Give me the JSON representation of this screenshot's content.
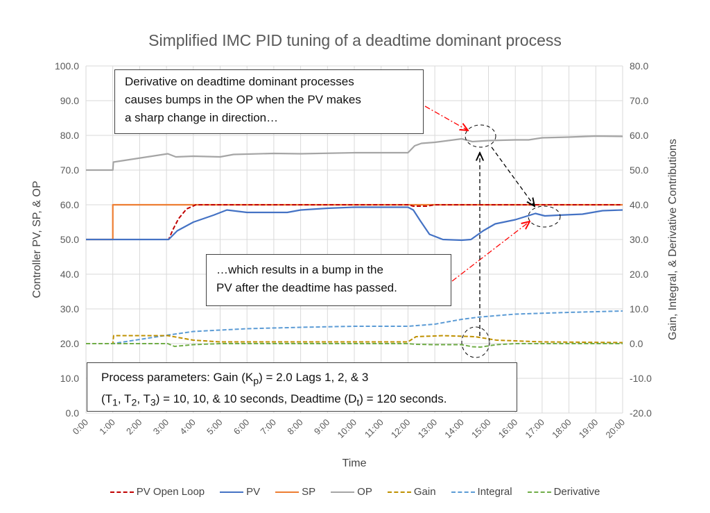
{
  "chart_data": {
    "type": "line",
    "title": "Simplified IMC PID tuning of a deadtime dominant process",
    "xlabel": "Time",
    "ylabel": "Controller PV, SP, & OP",
    "y2label": "Gain, Integral, & Derivative Contributions",
    "x_ticks": [
      "0:00",
      "1:00",
      "2:00",
      "3:00",
      "4:00",
      "5:00",
      "6:00",
      "7:00",
      "8:00",
      "9:00",
      "10:00",
      "11:00",
      "12:00",
      "13:00",
      "14:00",
      "15:00",
      "16:00",
      "17:00",
      "18:00",
      "19:00",
      "20:00"
    ],
    "xlim_minutes": [
      0,
      20
    ],
    "ylim": [
      0,
      100
    ],
    "y_ticks": [
      "0.0",
      "10.0",
      "20.0",
      "30.0",
      "40.0",
      "50.0",
      "60.0",
      "70.0",
      "80.0",
      "90.0",
      "100.0"
    ],
    "y2lim": [
      -20,
      80
    ],
    "y2_ticks": [
      "-20.0",
      "-10.0",
      "0.0",
      "10.0",
      "20.0",
      "30.0",
      "40.0",
      "50.0",
      "60.0",
      "70.0",
      "80.0"
    ],
    "grid": true,
    "legend_position": "bottom",
    "series": [
      {
        "name": "PV Open Loop",
        "axis": "left",
        "color": "#c00000",
        "dash": "dashed",
        "x": [
          0,
          3.08,
          3.25,
          3.45,
          3.75,
          4.1,
          12,
          12.2,
          12.7,
          13,
          20
        ],
        "y": [
          50,
          50,
          53,
          56,
          58.8,
          60,
          60,
          59.6,
          59.6,
          60,
          60
        ]
      },
      {
        "name": "PV",
        "axis": "left",
        "color": "#4472c4",
        "dash": "solid",
        "x": [
          0,
          3.08,
          3.4,
          4,
          4.75,
          5.25,
          6,
          7.5,
          8,
          9,
          10,
          12,
          12.2,
          12.45,
          12.8,
          13.3,
          14,
          14.35,
          14.8,
          15.25,
          16,
          16.75,
          17.1,
          17.6,
          18.5,
          19.25,
          20
        ],
        "y": [
          50,
          50,
          52.5,
          55,
          57,
          58.5,
          57.8,
          57.8,
          58.5,
          59,
          59.3,
          59.3,
          58.5,
          55.5,
          51.5,
          50,
          49.8,
          50,
          52.5,
          54.5,
          55.7,
          57.5,
          56.8,
          57,
          57.3,
          58.3,
          58.5
        ]
      },
      {
        "name": "SP",
        "axis": "left",
        "color": "#ed7d31",
        "dash": "solid",
        "x": [
          0,
          1,
          1,
          20
        ],
        "y": [
          50,
          50,
          60,
          60
        ]
      },
      {
        "name": "OP",
        "axis": "left",
        "color": "#a5a5a5",
        "dash": "solid",
        "x": [
          0,
          1,
          1.02,
          3.05,
          3.35,
          4,
          5,
          5.5,
          7,
          8,
          10,
          12,
          12.25,
          12.5,
          13,
          14,
          14.4,
          15,
          16,
          16.5,
          17,
          18,
          19,
          20
        ],
        "y": [
          70,
          70,
          72.3,
          74.7,
          73.8,
          74,
          73.8,
          74.5,
          74.8,
          74.7,
          75,
          75,
          77,
          77.7,
          78,
          79,
          78.2,
          78.5,
          78.7,
          78.7,
          79.3,
          79.5,
          79.8,
          79.7
        ]
      },
      {
        "name": "Gain",
        "axis": "right",
        "color": "#bf9000",
        "dash": "dashed",
        "x": [
          0,
          1,
          1.03,
          3.05,
          4,
          5,
          12,
          12.3,
          13.3,
          14.5,
          15.3,
          17,
          20
        ],
        "y": [
          0,
          0,
          2.3,
          2.3,
          1,
          0.5,
          0.5,
          2,
          2.3,
          2,
          1,
          0.5,
          0.3
        ]
      },
      {
        "name": "Integral",
        "axis": "right",
        "color": "#5b9bd5",
        "dash": "dashed",
        "x": [
          0,
          1,
          2,
          3,
          4,
          6,
          8,
          10,
          12,
          13,
          14,
          14.6,
          16,
          18,
          20
        ],
        "y": [
          0,
          0,
          1.2,
          2.4,
          3.5,
          4.3,
          4.7,
          5,
          5,
          5.6,
          7,
          7.6,
          8.5,
          9,
          9.4
        ]
      },
      {
        "name": "Derivative",
        "axis": "right",
        "color": "#70ad47",
        "dash": "dashed",
        "x": [
          0,
          3.05,
          3.3,
          4,
          5,
          12,
          12.3,
          13,
          14,
          14.4,
          14.7,
          15.3,
          16,
          20
        ],
        "y": [
          0,
          0,
          -0.8,
          -0.3,
          0,
          0,
          -0.2,
          -0.3,
          -0.3,
          -0.9,
          -1,
          -0.3,
          0,
          0
        ]
      }
    ],
    "annotations": [
      "Derivative on deadtime dominant processes causes bumps in the OP when the PV makes a sharp change in direction…",
      "…which results in a bump in the PV after the deadtime has passed."
    ]
  },
  "notes": {
    "top_line1": "Derivative on deadtime dominant processes",
    "top_line2": "causes bumps in the OP when the PV makes",
    "top_line3": "a sharp change in direction…",
    "mid_line1": "…which results in a bump in the",
    "mid_line2": "PV after the deadtime has passed.",
    "params_line1_a": "Process parameters:  Gain (K",
    "params_line1_sub": "p",
    "params_line1_b": ") = 2.0 Lags 1, 2, & 3",
    "params_line2_a": "(T",
    "params_line2_s1": "1",
    "params_line2_b": ", T",
    "params_line2_s2": "2",
    "params_line2_c": ", T",
    "params_line2_s3": "3",
    "params_line2_d": ") = 10, 10, & 10 seconds, Deadtime (D",
    "params_line2_s4": "t",
    "params_line2_e": ") = 120 seconds."
  }
}
